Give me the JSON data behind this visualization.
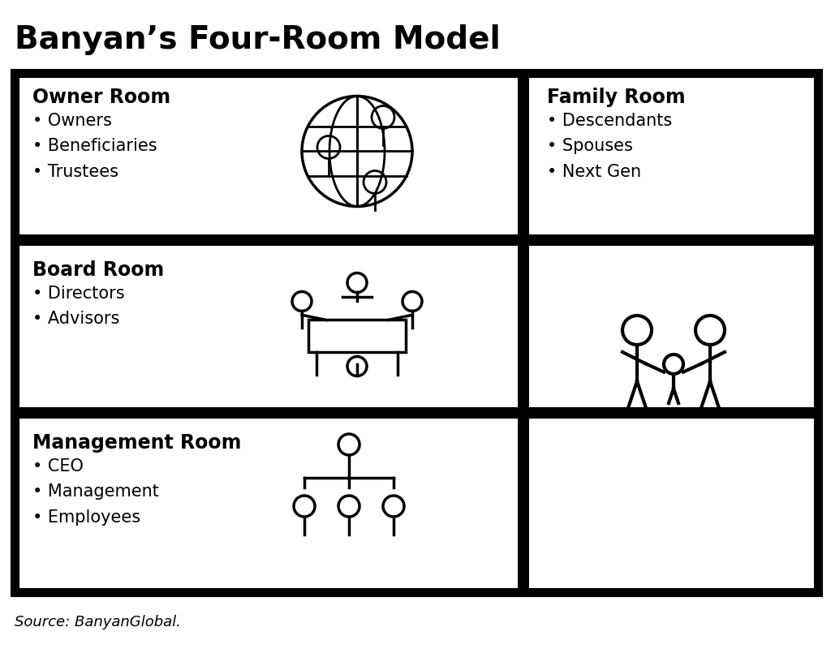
{
  "title": "Banyan’s Four-Room Model",
  "source": "Source: BanyanGlobal.",
  "bg_color": "#ffffff",
  "border_color": "#000000",
  "rooms": {
    "owner": {
      "title": "Owner Room",
      "items": [
        "Owners",
        "Beneficiaries",
        "Trustees"
      ]
    },
    "board": {
      "title": "Board Room",
      "items": [
        "Directors",
        "Advisors"
      ]
    },
    "management": {
      "title": "Management Room",
      "items": [
        "CEO",
        "Management",
        "Employees"
      ]
    },
    "family": {
      "title": "Family Room",
      "items": [
        "Descendants",
        "Spouses",
        "Next Gen"
      ]
    }
  },
  "title_fontsize": 28,
  "room_title_fontsize": 17,
  "room_item_fontsize": 15,
  "source_fontsize": 13
}
